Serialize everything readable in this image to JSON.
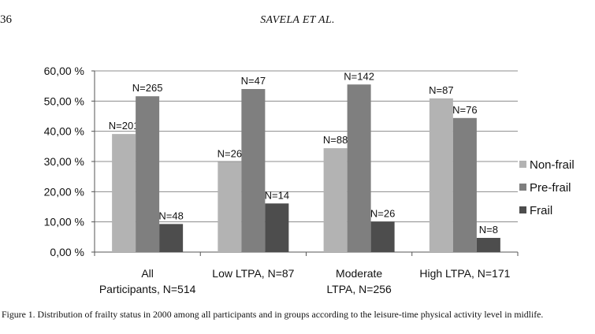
{
  "header": {
    "page_number": "36",
    "running_head": "SAVELA ET AL."
  },
  "caption": "Figure 1.  Distribution of frailty status in 2000 among all participants and in groups according to the leisure-time physical activity level in midlife.",
  "chart_data": {
    "type": "bar",
    "categories": [
      [
        "All",
        "Participants, N=514"
      ],
      [
        "Low LTPA, N=87"
      ],
      [
        "Moderate",
        "LTPA, N=256"
      ],
      [
        "High LTPA, N=171"
      ]
    ],
    "series": [
      {
        "name": "Non-frail",
        "color": "#b3b3b3",
        "values": [
          39.1,
          29.9,
          34.4,
          50.9
        ],
        "labels": [
          "N=201",
          "N=26",
          "N=88",
          "N=87"
        ]
      },
      {
        "name": "Pre-frail",
        "color": "#7f7f7f",
        "values": [
          51.6,
          54.0,
          55.5,
          44.4
        ],
        "labels": [
          "N=265",
          "N=47",
          "N=142",
          "N=76"
        ]
      },
      {
        "name": "Frail",
        "color": "#4d4d4d",
        "values": [
          9.3,
          16.1,
          10.1,
          4.7
        ],
        "labels": [
          "N=48",
          "N=14",
          "N=26",
          "N=8"
        ]
      }
    ],
    "yticks": [
      "0,00 %",
      "10,00 %",
      "20,00 %",
      "30,00 %",
      "40,00 %",
      "50,00 %",
      "60,00 %"
    ],
    "ylim": [
      0,
      60
    ],
    "grid": true,
    "legend_position": "right"
  }
}
